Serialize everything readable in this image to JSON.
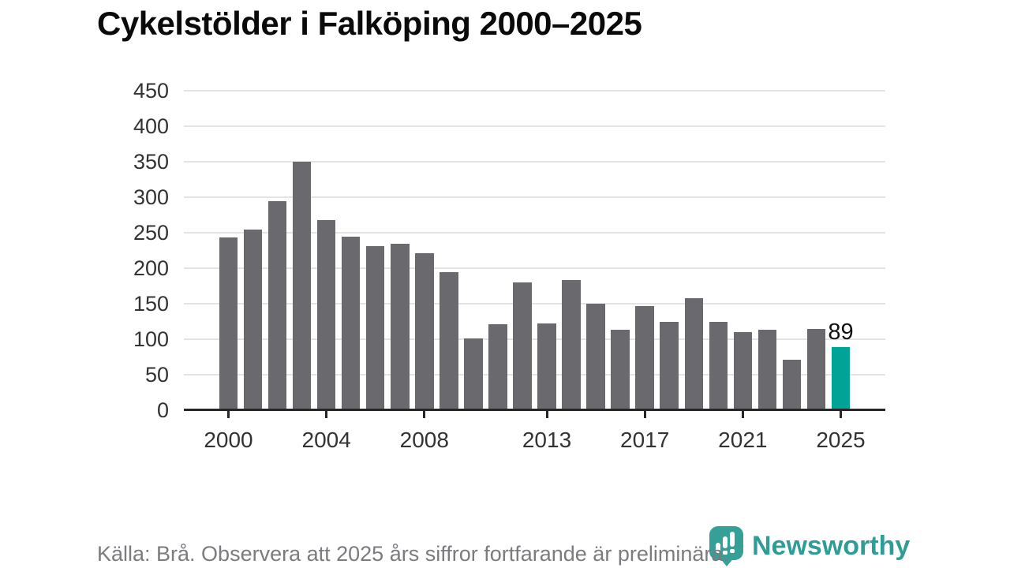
{
  "title": "Cykelstölder i Falköping 2000–2025",
  "chart_data": {
    "type": "bar",
    "title": "Cykelstölder i Falköping 2000–2025",
    "categories": [
      2000,
      2001,
      2002,
      2003,
      2004,
      2005,
      2006,
      2007,
      2008,
      2009,
      2010,
      2011,
      2012,
      2013,
      2014,
      2015,
      2016,
      2017,
      2018,
      2019,
      2020,
      2021,
      2022,
      2023,
      2024,
      2025
    ],
    "values": [
      243,
      255,
      295,
      350,
      268,
      245,
      231,
      234,
      221,
      195,
      101,
      121,
      180,
      122,
      183,
      150,
      113,
      147,
      125,
      158,
      125,
      110,
      113,
      71,
      114,
      89
    ],
    "xlabel": "",
    "ylabel": "",
    "ylim": [
      0,
      450
    ],
    "yticks": [
      0,
      50,
      100,
      150,
      200,
      250,
      300,
      350,
      400,
      450
    ],
    "xticks": [
      2000,
      2004,
      2008,
      2013,
      2017,
      2021,
      2025
    ],
    "grid": true,
    "legend": "none",
    "bar_color": "#6a6a6e",
    "highlight_category": 2025,
    "highlight_color": "#00a496",
    "highlight_value_label": "89"
  },
  "footer": {
    "source_note": "Källa: Brå. Observera att 2025 års siffror fortfarande är preliminära."
  },
  "branding": {
    "logo_text": "Newsworthy",
    "logo_color": "#2f9d95",
    "logo_icon": "newsworthy-bubble-barchart-icon"
  }
}
